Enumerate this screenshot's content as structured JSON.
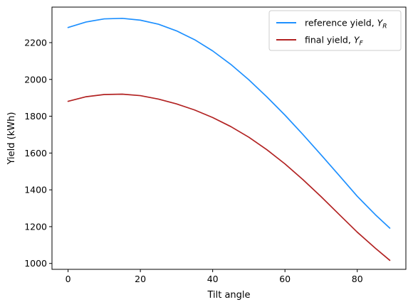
{
  "chart_data": {
    "type": "line",
    "xlabel": "Tilt angle",
    "ylabel": "Yield (kWh)",
    "xlim": [
      -4.45,
      93.45
    ],
    "ylim": [
      968,
      2393
    ],
    "xticks": [
      0,
      20,
      40,
      60,
      80
    ],
    "yticks": [
      1000,
      1200,
      1400,
      1600,
      1800,
      2000,
      2200
    ],
    "grid": false,
    "legend_position": "top-right",
    "series": [
      {
        "name": "reference yield, ",
        "name_symbol": "Y",
        "name_subscript": "R",
        "color": "#1e90ff",
        "x": [
          0,
          5,
          10,
          15,
          20,
          25,
          30,
          35,
          40,
          45,
          50,
          55,
          60,
          65,
          70,
          75,
          80,
          85,
          89
        ],
        "y": [
          2282,
          2312,
          2329,
          2332,
          2322,
          2300,
          2264,
          2216,
          2155,
          2082,
          1998,
          1905,
          1806,
          1700,
          1590,
          1478,
          1365,
          1265,
          1192
        ]
      },
      {
        "name": "final yield, ",
        "name_symbol": "Y",
        "name_subscript": "F",
        "color": "#b22222",
        "x": [
          0,
          5,
          10,
          15,
          20,
          25,
          30,
          35,
          40,
          45,
          50,
          55,
          60,
          65,
          70,
          75,
          80,
          85,
          89
        ],
        "y": [
          1881,
          1906,
          1918,
          1920,
          1912,
          1893,
          1867,
          1834,
          1793,
          1744,
          1686,
          1618,
          1541,
          1455,
          1363,
          1266,
          1170,
          1083,
          1017
        ]
      }
    ]
  }
}
